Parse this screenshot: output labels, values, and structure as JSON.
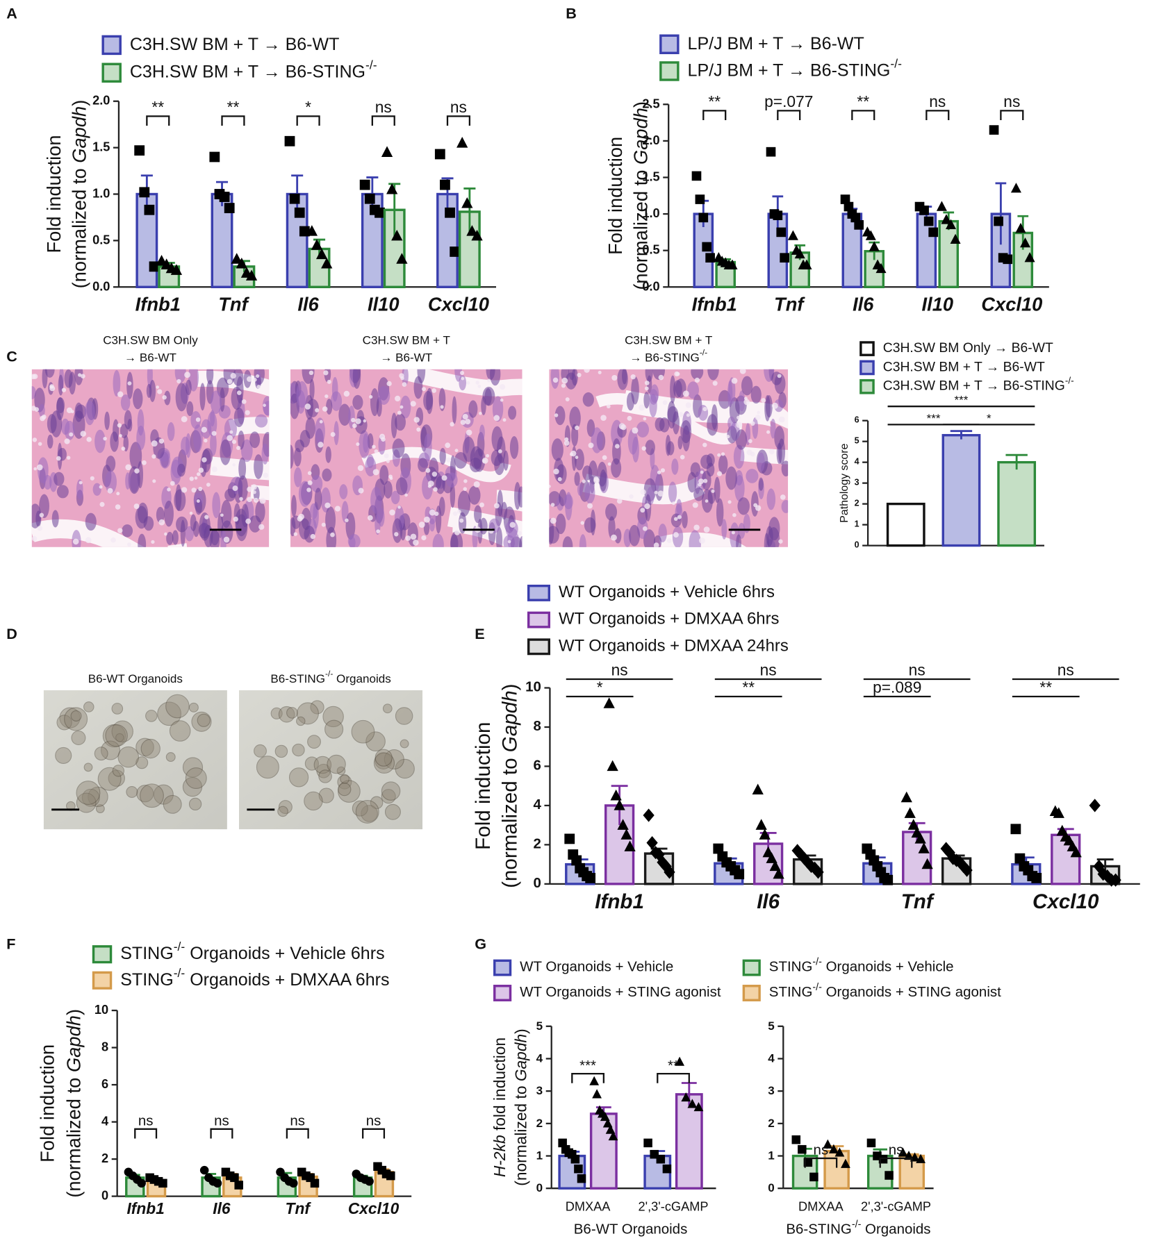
{
  "panels": [
    "A",
    "B",
    "C",
    "D",
    "E",
    "F",
    "G"
  ],
  "images": [
    {
      "title": [
        "C3H.SW BM Only",
        "→ B6-WT"
      ]
    },
    {
      "title": [
        "C3H.SW BM + T",
        "→ B6-WT"
      ]
    },
    {
      "title": [
        "C3H.SW BM + T",
        "→ B6-STING-/-"
      ]
    },
    {
      "title": [
        "B6-WT Organoids"
      ]
    },
    {
      "title": [
        "B6-STING-/- Organoids"
      ]
    }
  ],
  "chart_data": [
    {
      "type": "bar",
      "ylabel": [
        "Fold induction",
        "(normalized to Gapdh)"
      ],
      "categories": [
        "Ifnb1",
        "Tnf",
        "Il6",
        "Il10",
        "Cxcl10"
      ],
      "ylim": [
        0,
        2
      ],
      "yticks": [
        {
          "value": 0,
          "label": "0.0"
        },
        0.5,
        {
          "value": 1,
          "label": "1.0"
        },
        1.5,
        {
          "value": 2,
          "label": "2.0"
        }
      ],
      "series": [
        {
          "name": "C3H.SW BM + T → B6-WT",
          "color": "#3a3fae",
          "fill": "#b8bbe4",
          "marker": "square",
          "values": [
            1,
            1,
            1,
            1,
            1
          ],
          "errors": [
            0.2,
            0.13,
            0.2,
            0.18,
            0.17
          ],
          "points": [
            [
              1.47,
              1.02,
              0.83,
              0.22
            ],
            [
              1.4,
              1.0,
              0.97,
              0.85
            ],
            [
              1.57,
              0.95,
              0.8,
              0.6
            ],
            [
              1.1,
              0.95,
              0.83,
              0.8
            ],
            [
              1.43,
              1.1,
              0.8,
              0.38
            ]
          ]
        },
        {
          "name": "C3H.SW BM + T → B6-STING-/-",
          "color": "#2d8a3a",
          "fill": "#c5dfc5",
          "marker": "triangle",
          "values": [
            0.22,
            0.22,
            0.41,
            0.83,
            0.81
          ],
          "errors": [
            0.04,
            0.06,
            0.1,
            0.28,
            0.25
          ],
          "points": [
            [
              0.28,
              0.24,
              0.2,
              0.18
            ],
            [
              0.3,
              0.25,
              0.15,
              0.12
            ],
            [
              0.6,
              0.45,
              0.35,
              0.25
            ],
            [
              1.45,
              1.05,
              0.55,
              0.3
            ],
            [
              1.55,
              0.9,
              0.6,
              0.55
            ]
          ]
        }
      ],
      "significance": [
        [
          "**"
        ],
        [
          "**"
        ],
        [
          "*"
        ],
        [
          "ns"
        ],
        [
          "ns"
        ]
      ]
    },
    {
      "type": "bar",
      "ylabel": [
        "Fold induction",
        "(normalized to Gapdh)"
      ],
      "categories": [
        "Ifnb1",
        "Tnf",
        "Il6",
        "Il10",
        "Cxcl10"
      ],
      "ylim": [
        0,
        2.5
      ],
      "yticks": [
        {
          "value": 0,
          "label": "0.0"
        },
        0.5,
        {
          "value": 1,
          "label": "1.0"
        },
        1.5,
        {
          "value": 2,
          "label": "2.0"
        },
        2.5
      ],
      "series": [
        {
          "name": "LP/J BM + T → B6-WT",
          "color": "#3a3fae",
          "fill": "#b8bbe4",
          "marker": "square",
          "values": [
            1,
            1,
            1,
            1,
            1
          ],
          "errors": [
            0.18,
            0.24,
            0.07,
            0.1,
            0.42
          ],
          "points": [
            [
              1.52,
              1.2,
              0.95,
              0.55,
              0.4
            ],
            [
              1.85,
              1.0,
              0.98,
              0.75,
              0.4
            ],
            [
              1.2,
              1.1,
              1.0,
              0.95,
              0.85
            ],
            [
              1.1,
              1.05,
              0.9,
              0.75
            ],
            [
              2.15,
              0.9,
              0.4,
              0.38
            ]
          ]
        },
        {
          "name": "LP/J BM + T → B6-STING-/-",
          "color": "#2d8a3a",
          "fill": "#c5dfc5",
          "marker": "triangle",
          "values": [
            0.34,
            0.47,
            0.49,
            0.9,
            0.74
          ],
          "errors": [
            0.04,
            0.1,
            0.12,
            0.12,
            0.23
          ],
          "points": [
            [
              0.4,
              0.35,
              0.33,
              0.3,
              0.3
            ],
            [
              0.7,
              0.5,
              0.45,
              0.3,
              0.3
            ],
            [
              0.75,
              0.7,
              0.55,
              0.3,
              0.25
            ],
            [
              1.1,
              0.92,
              0.85,
              0.65
            ],
            [
              1.35,
              0.8,
              0.6,
              0.4
            ]
          ]
        }
      ],
      "significance": [
        [
          "**"
        ],
        [
          "p=.077"
        ],
        [
          "**"
        ],
        [
          "ns"
        ],
        [
          "ns"
        ]
      ]
    },
    {
      "type": "bar",
      "ylabel": [
        "Pathology score"
      ],
      "categories": [
        null
      ],
      "ylim": [
        0,
        6
      ],
      "yticks": [
        0,
        1,
        2,
        3,
        4,
        5,
        6
      ],
      "series": [
        {
          "name": "C3H.SW BM Only → B6-WT",
          "color": "#111111",
          "fill": "#ffffff",
          "values": [
            2
          ]
        },
        {
          "name": "C3H.SW BM + T → B6-WT",
          "color": "#3a3fae",
          "fill": "#b8bbe4",
          "values": [
            5.3
          ],
          "errors": [
            0.2
          ]
        },
        {
          "name": "C3H.SW BM + T → B6-STING-/-",
          "color": "#2d8a3a",
          "fill": "#c5dfc5",
          "values": [
            4.0
          ],
          "errors": [
            0.35
          ]
        }
      ],
      "significance": [
        [
          "***",
          "*",
          "***"
        ]
      ]
    },
    {
      "type": "bar",
      "ylabel": [
        "Fold induction",
        "(normalized to Gapdh)"
      ],
      "categories": [
        "Ifnb1",
        "Il6",
        "Tnf",
        "Cxcl10"
      ],
      "ylim": [
        0,
        10
      ],
      "yticks": [
        0,
        2,
        4,
        6,
        8,
        10
      ],
      "series": [
        {
          "name": "WT Organoids + Vehicle 6hrs",
          "color": "#3a3fae",
          "fill": "#b8bbe4",
          "marker": "square",
          "values": [
            1.0,
            1.05,
            1.05,
            1.0
          ],
          "errors": [
            0.25,
            0.25,
            0.3,
            0.35
          ],
          "points": [
            [
              2.3,
              1.5,
              1.2,
              0.8,
              0.6,
              0.4,
              0.3
            ],
            [
              1.8,
              1.4,
              1.1,
              0.9,
              0.7,
              0.5
            ],
            [
              1.8,
              1.5,
              1.2,
              0.9,
              0.6,
              0.3,
              0.2
            ],
            [
              2.8,
              1.3,
              0.9,
              0.7,
              0.4,
              0.3
            ]
          ]
        },
        {
          "name": "WT Organoids + DMXAA 6hrs",
          "color": "#7b2fa0",
          "fill": "#dcc6e8",
          "marker": "triangle",
          "values": [
            4.0,
            2.05,
            2.65,
            2.5
          ],
          "errors": [
            1.0,
            0.55,
            0.45,
            0.3
          ],
          "points": [
            [
              9.2,
              6.0,
              4.5,
              4.0,
              3.0,
              2.5,
              1.9
            ],
            [
              4.8,
              3.0,
              2.5,
              1.6,
              1.3,
              0.9,
              0.5
            ],
            [
              4.4,
              3.6,
              3.0,
              2.6,
              2.3,
              1.8,
              1.0
            ],
            [
              3.7,
              3.6,
              2.7,
              2.4,
              2.2,
              1.9,
              1.6
            ]
          ]
        },
        {
          "name": "WT Organoids + DMXAA 24hrs",
          "color": "#1a1a1a",
          "fill": "#dcdcdc",
          "marker": "diamond",
          "values": [
            1.55,
            1.25,
            1.3,
            0.9
          ],
          "errors": [
            0.25,
            0.2,
            0.15,
            0.35
          ],
          "points": [
            [
              3.5,
              2.1,
              1.6,
              1.5,
              1.1,
              0.9,
              0.6
            ],
            [
              1.7,
              1.5,
              1.3,
              1.1,
              0.9,
              0.8,
              0.6
            ],
            [
              1.8,
              1.6,
              1.3,
              1.2,
              1.1,
              0.9,
              0.7
            ],
            [
              4.0,
              0.9,
              0.5,
              0.4,
              0.2,
              0.2
            ]
          ]
        }
      ],
      "significance": [
        [
          "*",
          "ns"
        ],
        [
          "**",
          "ns"
        ],
        [
          "p=.089",
          "ns"
        ],
        [
          "**",
          "ns"
        ]
      ]
    },
    {
      "type": "bar",
      "ylabel": [
        "Fold induction",
        "(normalized to Gapdh)"
      ],
      "categories": [
        "Ifnb1",
        "Il6",
        "Tnf",
        "Cxcl10"
      ],
      "ylim": [
        0,
        10
      ],
      "yticks": [
        0,
        2,
        4,
        6,
        8,
        10
      ],
      "series": [
        {
          "name": "STING-/- Organoids + Vehicle 6hrs",
          "color": "#2d8a3a",
          "fill": "#c5dfc5",
          "marker": "circle",
          "values": [
            1,
            1,
            1,
            1
          ],
          "errors": [
            0.15,
            0.2,
            0.25,
            0.1
          ],
          "points": [
            [
              1.3,
              1.1,
              0.9,
              0.7
            ],
            [
              1.4,
              1.0,
              0.8,
              0.7
            ],
            [
              1.3,
              1.0,
              0.8,
              0.7
            ],
            [
              1.2,
              1.0,
              0.9,
              0.8
            ]
          ]
        },
        {
          "name": "STING-/- Organoids + DMXAA 6hrs",
          "color": "#d49a4a",
          "fill": "#f3d3a6",
          "marker": "square",
          "values": [
            0.85,
            1.0,
            1.05,
            1.3
          ],
          "errors": [
            0.1,
            0.2,
            0.15,
            0.15
          ],
          "points": [
            [
              1.0,
              0.9,
              0.8,
              0.7
            ],
            [
              1.3,
              1.1,
              1.0,
              0.6
            ],
            [
              1.3,
              1.1,
              1.0,
              0.7
            ],
            [
              1.6,
              1.4,
              1.2,
              1.1
            ]
          ]
        }
      ],
      "significance": [
        [
          "ns"
        ],
        [
          "ns"
        ],
        [
          "ns"
        ],
        [
          "ns"
        ]
      ]
    },
    {
      "type": "bar",
      "ylabel": [
        "H-2kb fold induction",
        "(normalized to Gapdh)"
      ],
      "xlabel": "B6-WT Organoids",
      "categories": [
        "DMXAA",
        "2',3'-cGAMP"
      ],
      "ylim": [
        0,
        5
      ],
      "yticks": [
        0,
        1,
        2,
        3,
        4,
        5
      ],
      "series": [
        {
          "name": "WT Organoids + Vehicle",
          "color": "#3a3fae",
          "fill": "#b8bbe4",
          "marker": "square",
          "values": [
            1.0,
            1.0
          ],
          "errors": [
            0.13,
            0.15
          ],
          "points": [
            [
              1.4,
              1.2,
              1.1,
              1.05,
              0.9,
              0.6,
              0.3
            ],
            [
              1.4,
              1.05,
              0.9,
              0.6
            ]
          ]
        },
        {
          "name": "WT Organoids + STING agonist",
          "color": "#7b2fa0",
          "fill": "#dcc6e8",
          "marker": "triangle",
          "values": [
            2.3,
            2.9
          ],
          "errors": [
            0.2,
            0.35
          ],
          "points": [
            [
              3.3,
              2.9,
              2.4,
              2.3,
              2.2,
              2.0,
              1.8,
              1.6
            ],
            [
              3.9,
              2.8,
              2.6,
              2.5
            ]
          ]
        }
      ],
      "significance": [
        [
          "***"
        ],
        [
          "**"
        ]
      ]
    },
    {
      "type": "bar",
      "xlabel": "B6-STING-/- Organoids",
      "categories": [
        "DMXAA",
        "2',3'-cGAMP"
      ],
      "ylim": [
        0,
        5
      ],
      "yticks": [
        0,
        1,
        2,
        3,
        4,
        5
      ],
      "series": [
        {
          "name": "STING-/- Organoids  + Vehicle",
          "color": "#2d8a3a",
          "fill": "#c5dfc5",
          "marker": "square",
          "values": [
            1.0,
            1.0
          ],
          "errors": [
            0.22,
            0.2
          ],
          "points": [
            [
              1.5,
              1.2,
              0.8,
              0.35
            ],
            [
              1.4,
              1.0,
              0.9,
              0.4
            ]
          ]
        },
        {
          "name": "STING-/- Organoids + STING agonist",
          "color": "#d49a4a",
          "fill": "#f3d3a6",
          "marker": "triangle",
          "values": [
            1.15,
            1.0
          ],
          "errors": [
            0.15,
            0.05
          ],
          "points": [
            [
              1.35,
              1.2,
              1.1,
              0.75
            ],
            [
              1.1,
              1.0,
              0.95,
              0.9
            ]
          ]
        }
      ],
      "significance": [
        [
          "ns"
        ],
        [
          "ns"
        ]
      ]
    }
  ]
}
